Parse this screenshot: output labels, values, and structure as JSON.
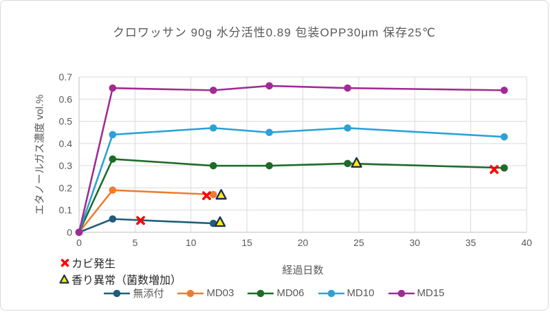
{
  "figure": {
    "background": "#ffffff",
    "border_color": "#d9d9d9"
  },
  "chart_data": {
    "type": "line",
    "title": "クロワッサン 90g 水分活性0.89 包装OPP30μm 保存25℃",
    "xlabel": "経過日数",
    "ylabel": "エタノールガス濃度 vol.%",
    "xlim": [
      0,
      40
    ],
    "ylim": [
      0,
      0.7
    ],
    "xticks": [
      0,
      5,
      10,
      15,
      20,
      25,
      30,
      35,
      40
    ],
    "yticks": [
      0,
      0.1,
      0.2,
      0.3,
      0.4,
      0.5,
      0.6,
      0.7
    ],
    "grid": true,
    "grid_color": "#d9d9d9",
    "axis_color": "#bfbfbf",
    "tick_color": "#595959",
    "legend_position": "bottom",
    "series": [
      {
        "name": "無添付",
        "color": "#1F5C7A",
        "x": [
          0,
          3,
          12
        ],
        "y": [
          0,
          0.06,
          0.04
        ]
      },
      {
        "name": "MD03",
        "color": "#ED7D31",
        "x": [
          0,
          3,
          12
        ],
        "y": [
          0,
          0.19,
          0.17
        ]
      },
      {
        "name": "MD06",
        "color": "#1E6B28",
        "x": [
          0,
          3,
          12,
          17,
          24,
          38
        ],
        "y": [
          0,
          0.33,
          0.3,
          0.3,
          0.31,
          0.29
        ]
      },
      {
        "name": "MD10",
        "color": "#2CA1D8",
        "x": [
          0,
          3,
          12,
          17,
          24,
          38
        ],
        "y": [
          0,
          0.44,
          0.47,
          0.45,
          0.47,
          0.43
        ]
      },
      {
        "name": "MD15",
        "color": "#A02B93",
        "x": [
          0,
          3,
          12,
          17,
          24,
          38
        ],
        "y": [
          0,
          0.65,
          0.64,
          0.66,
          0.65,
          0.64
        ]
      }
    ],
    "markers": {
      "mold": {
        "label": "カビ発生",
        "symbol": "x-cross",
        "color": "#FF0000",
        "points": [
          {
            "x": 5.5,
            "y": 0.053
          },
          {
            "x": 11.4,
            "y": 0.165
          },
          {
            "x": 37.1,
            "y": 0.283
          }
        ]
      },
      "odor": {
        "label": "香り異常（菌数増加）",
        "symbol": "triangle",
        "fill": "#FFF100",
        "stroke": "#1F3050",
        "points": [
          {
            "x": 12.6,
            "y": 0.045
          },
          {
            "x": 12.7,
            "y": 0.168
          },
          {
            "x": 24.8,
            "y": 0.312
          }
        ]
      }
    }
  }
}
